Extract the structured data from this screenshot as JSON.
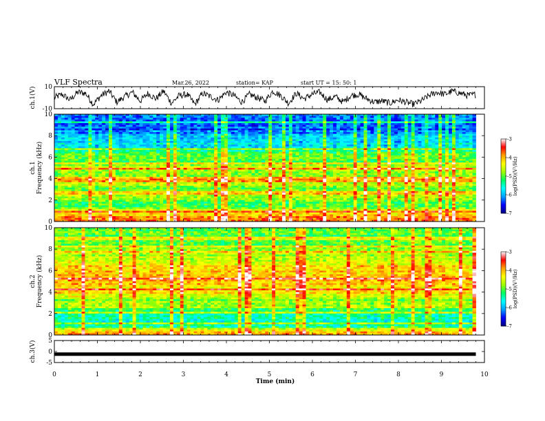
{
  "header": {
    "title": "VLF Spectra",
    "date": "Mar.26, 2022",
    "station": "station= KAP",
    "start": "start  UT =   15: 50: 1"
  },
  "chart_data": [
    {
      "type": "line",
      "panel": "ch1-waveform",
      "ylabel": "ch.1(V)",
      "ylim": [
        -10,
        10
      ],
      "yticks": [
        10,
        -10
      ],
      "x_range": [
        0,
        9.8
      ],
      "description_series": "noisy waveform oscillating roughly between -8 and 8 V",
      "series": [
        {
          "values": [
            0,
            3,
            -2,
            5,
            4,
            -6,
            2,
            6,
            -4,
            1,
            5,
            -3,
            4,
            -1,
            6,
            -5,
            2,
            3,
            -6,
            4,
            1,
            -2,
            5,
            2,
            -4,
            3,
            0,
            -3,
            6,
            2,
            -5,
            4,
            -1,
            3,
            5,
            -2,
            1,
            -4,
            2,
            3,
            -1,
            -4,
            -3,
            -5,
            -2,
            -4,
            -6,
            -3,
            2,
            5,
            3,
            6,
            4,
            2,
            3
          ]
        }
      ]
    },
    {
      "type": "heatmap",
      "panel": "ch1-spectrogram",
      "ylabel": "ch.1\nFrequency (kHz)",
      "ylim": [
        0,
        10
      ],
      "yticks": [
        0,
        2,
        4,
        6,
        8,
        10
      ],
      "colorbar": {
        "label": "log(PSD)(V²/Hz)",
        "range": [
          -7,
          -3
        ],
        "ticks": [
          -3,
          -4,
          -5,
          -6,
          -7
        ]
      },
      "band_profile_by_khz": [
        {
          "f": 0.3,
          "v": -3.8
        },
        {
          "f": 0.8,
          "v": -4.2
        },
        {
          "f": 1.5,
          "v": -5.2
        },
        {
          "f": 2.2,
          "v": -4.6
        },
        {
          "f": 3.0,
          "v": -5.0
        },
        {
          "f": 3.8,
          "v": -4.5
        },
        {
          "f": 4.5,
          "v": -5.0
        },
        {
          "f": 5.0,
          "v": -4.4
        },
        {
          "f": 5.5,
          "v": -5.1
        },
        {
          "f": 6.3,
          "v": -5.0
        },
        {
          "f": 7.0,
          "v": -5.8
        },
        {
          "f": 7.8,
          "v": -5.9
        },
        {
          "f": 8.6,
          "v": -6.3
        },
        {
          "f": 9.5,
          "v": -6.2
        }
      ]
    },
    {
      "type": "heatmap",
      "panel": "ch2-spectrogram",
      "ylabel": "ch.2\nFrequency (kHz)",
      "ylim": [
        0,
        10
      ],
      "yticks": [
        0,
        2,
        4,
        6,
        8,
        10
      ],
      "colorbar": {
        "label": "log(PSD)(V²/Hz)",
        "range": [
          -7,
          -3
        ],
        "ticks": [
          -3,
          -4,
          -5,
          -6,
          -7
        ]
      },
      "band_profile_by_khz": [
        {
          "f": 0.3,
          "v": -4.0
        },
        {
          "f": 0.8,
          "v": -5.3
        },
        {
          "f": 1.5,
          "v": -5.6
        },
        {
          "f": 2.2,
          "v": -5.2
        },
        {
          "f": 3.0,
          "v": -5.5
        },
        {
          "f": 3.8,
          "v": -4.3
        },
        {
          "f": 4.5,
          "v": -4.2
        },
        {
          "f": 5.0,
          "v": -4.0
        },
        {
          "f": 5.5,
          "v": -4.1
        },
        {
          "f": 6.3,
          "v": -4.2
        },
        {
          "f": 7.0,
          "v": -4.5
        },
        {
          "f": 7.8,
          "v": -4.8
        },
        {
          "f": 8.6,
          "v": -5.1
        },
        {
          "f": 9.5,
          "v": -5.0
        }
      ]
    },
    {
      "type": "line",
      "panel": "ch3-waveform",
      "ylabel": "ch.3(V)",
      "ylim": [
        -5,
        5
      ],
      "yticks": [
        5,
        0,
        -5
      ],
      "series": [
        {
          "values": [
            -1.2,
            -1.2
          ]
        }
      ]
    }
  ],
  "x_axis": {
    "label": "Time (min)",
    "ticks": [
      "0",
      "1",
      "2",
      "3",
      "4",
      "5",
      "6",
      "7",
      "8",
      "9",
      "10"
    ],
    "range": [
      0,
      10
    ]
  },
  "colors": {
    "colormap": [
      "#000080",
      "#0000ff",
      "#00a0ff",
      "#00ffff",
      "#00ff60",
      "#a0ff00",
      "#ffff00",
      "#ffa000",
      "#ff0000",
      "#ffffff"
    ]
  }
}
